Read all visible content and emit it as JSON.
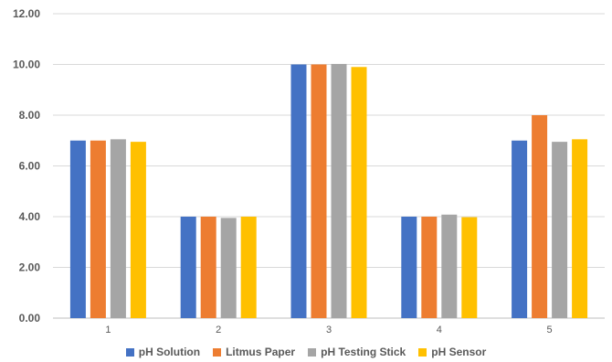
{
  "chart_data": {
    "type": "bar",
    "title": "",
    "xlabel": "",
    "ylabel": "",
    "categories": [
      "1",
      "2",
      "3",
      "4",
      "5"
    ],
    "ylim": [
      0,
      12
    ],
    "yticks": [
      "0.00",
      "2.00",
      "4.00",
      "6.00",
      "8.00",
      "10.00",
      "12.00"
    ],
    "grid": true,
    "legend_position": "bottom",
    "series": [
      {
        "name": "pH Solution",
        "color": "#4472C4",
        "values": [
          7.0,
          4.0,
          10.0,
          4.0,
          7.0
        ]
      },
      {
        "name": "Litmus Paper",
        "color": "#ED7D31",
        "values": [
          7.0,
          4.0,
          10.0,
          4.0,
          8.0
        ]
      },
      {
        "name": "pH Testing Stick",
        "color": "#A5A5A5",
        "values": [
          7.05,
          3.95,
          10.02,
          4.08,
          6.95
        ]
      },
      {
        "name": "pH Sensor",
        "color": "#FFC000",
        "values": [
          6.95,
          4.0,
          9.9,
          3.98,
          7.05
        ]
      }
    ]
  }
}
